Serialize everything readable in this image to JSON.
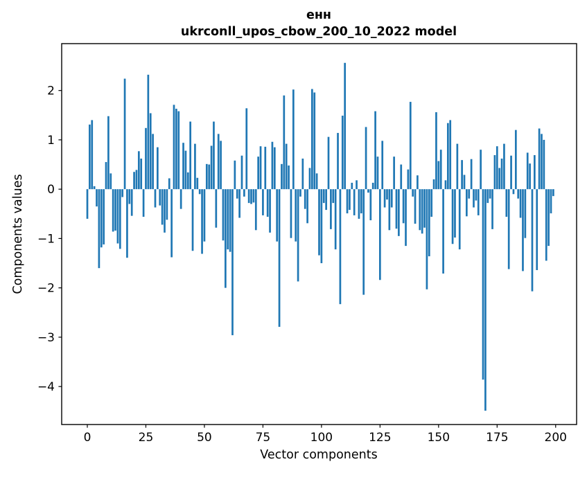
{
  "chart_data": {
    "type": "bar",
    "title_line1": "енн",
    "title_line2": "ukrconll_upos_cbow_200_10_2022 model",
    "xlabel": "Vector components",
    "ylabel": "Components values",
    "legend": null,
    "grid": false,
    "bar_color": "#1f77b4",
    "x_ticks": [
      0,
      25,
      50,
      75,
      100,
      125,
      150,
      175,
      200
    ],
    "y_ticks": [
      2,
      1,
      0,
      -1,
      -2,
      -3,
      -4
    ],
    "xlim": [
      -10.95,
      208.95
    ],
    "ylim": [
      -4.77,
      2.95
    ],
    "n_components": 200,
    "values": [
      -0.6,
      1.31,
      1.4,
      0.06,
      -0.35,
      -1.6,
      -1.18,
      -1.12,
      0.55,
      1.48,
      0.32,
      -0.86,
      -0.84,
      -1.1,
      -1.21,
      -0.16,
      2.24,
      -1.39,
      -0.3,
      -0.54,
      0.35,
      0.39,
      0.77,
      0.62,
      -0.56,
      1.24,
      2.32,
      1.54,
      1.12,
      -0.37,
      0.85,
      -0.33,
      -0.72,
      -0.88,
      -0.62,
      0.22,
      -1.38,
      1.71,
      1.63,
      1.58,
      -0.4,
      0.94,
      0.78,
      0.34,
      1.37,
      -1.25,
      0.92,
      0.23,
      -0.1,
      -1.31,
      -1.06,
      0.51,
      0.5,
      0.88,
      1.37,
      -0.78,
      1.12,
      0.98,
      -1.04,
      -2.0,
      -1.22,
      -1.27,
      -2.96,
      0.58,
      -0.19,
      -0.58,
      0.68,
      -0.15,
      1.64,
      -0.28,
      -0.3,
      -0.27,
      -0.83,
      0.66,
      0.87,
      -0.53,
      0.86,
      -0.56,
      -0.88,
      0.96,
      0.85,
      -1.06,
      -2.79,
      0.51,
      1.9,
      0.92,
      0.48,
      -0.99,
      2.02,
      -1.06,
      -1.87,
      -0.15,
      0.62,
      -0.4,
      -0.69,
      0.43,
      2.03,
      1.96,
      0.32,
      -1.34,
      -1.5,
      -0.28,
      -0.42,
      1.06,
      -0.81,
      -0.28,
      -1.22,
      1.14,
      -2.33,
      1.49,
      2.56,
      -0.49,
      -0.42,
      0.13,
      -0.53,
      0.18,
      -0.6,
      -0.49,
      -2.14,
      1.26,
      -0.07,
      -0.63,
      0.13,
      1.58,
      0.66,
      -1.84,
      0.98,
      -0.37,
      -0.21,
      -0.83,
      -0.37,
      0.66,
      -0.8,
      -0.95,
      0.5,
      -0.69,
      -1.15,
      0.4,
      1.77,
      -0.15,
      -0.7,
      0.28,
      -0.83,
      -0.9,
      -0.78,
      -2.03,
      -1.36,
      -0.56,
      0.2,
      1.56,
      0.57,
      0.8,
      -1.71,
      0.18,
      1.34,
      1.4,
      -1.11,
      -0.98,
      0.92,
      -1.22,
      0.59,
      0.29,
      -0.55,
      -0.19,
      0.61,
      -0.37,
      -0.23,
      -0.53,
      0.8,
      -3.86,
      -4.49,
      -0.28,
      -0.19,
      -0.81,
      0.69,
      0.87,
      0.43,
      0.62,
      0.92,
      -0.56,
      -1.62,
      0.68,
      -0.1,
      1.2,
      -0.19,
      -0.58,
      -1.66,
      -0.99,
      0.74,
      0.52,
      -2.07,
      0.69,
      -1.64,
      1.23,
      1.12,
      1.0,
      -1.45,
      -1.15,
      -0.49,
      -0.14
    ]
  }
}
